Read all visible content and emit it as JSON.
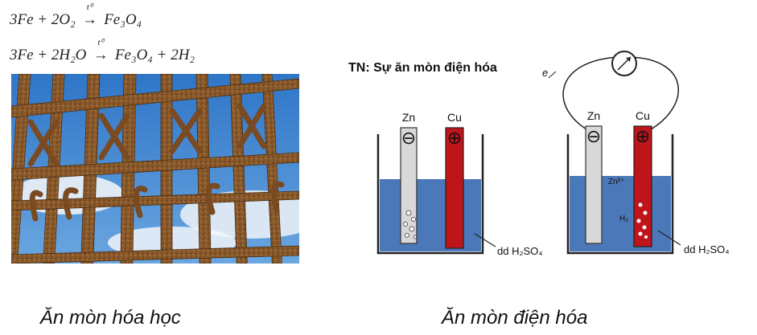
{
  "equations": {
    "eq1": {
      "lhs": "3Fe + 2O₂",
      "arrow": "→",
      "condition": "t⁰",
      "rhs": "Fe₃O₄"
    },
    "eq2": {
      "lhs": "3Fe + 2H₂O",
      "arrow": "→",
      "condition": "t⁰",
      "rhs": "Fe₃O₄ + 2H₂"
    }
  },
  "diagram": {
    "title": "TN: Sự ăn mòn điện hóa",
    "electron_label": "e",
    "anode_label": "Zn",
    "cathode_label": "Cu",
    "minus_sign": "⊖",
    "plus_sign": "⊕",
    "ion_label": "Zn²⁺",
    "gas_label": "H₂",
    "solution_label_left": "dd H₂SO₄",
    "solution_label_right": "dd H₂SO₄",
    "colors": {
      "solution": "#4a78b8",
      "copper": "#c0141b",
      "zinc": "#d8d8d8"
    }
  },
  "captions": {
    "chemical": "Ăn mòn hóa học",
    "electrochemical": "Ăn mòn điện hóa"
  }
}
